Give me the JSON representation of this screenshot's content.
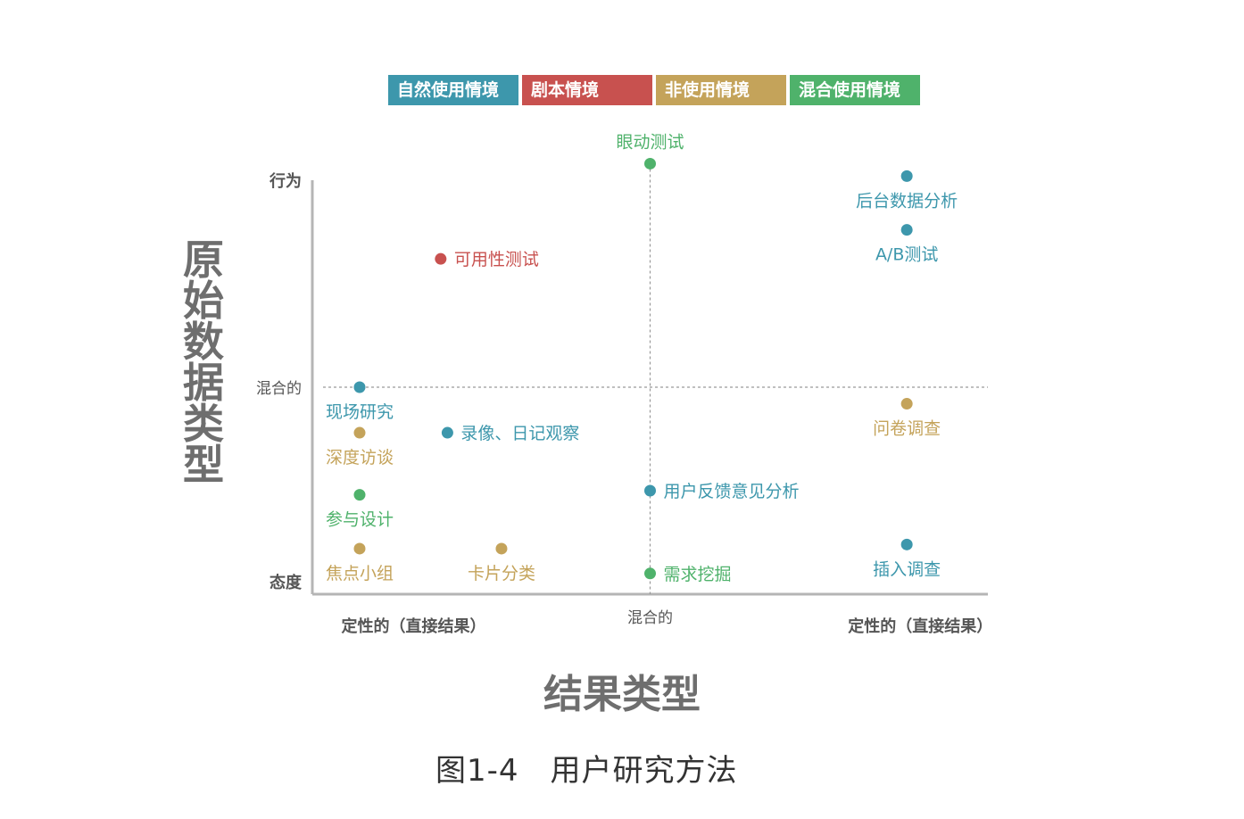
{
  "legend": [
    {
      "label": "自然使用情境",
      "color": "#3d97ac"
    },
    {
      "label": "剧本情境",
      "color": "#c8514f"
    },
    {
      "label": "非使用情境",
      "color": "#c4a35a"
    },
    {
      "label": "混合使用情境",
      "color": "#4fb26b"
    }
  ],
  "chart_data": {
    "type": "scatter",
    "title": "",
    "xlabel": "结果类型",
    "ylabel": "原始数据类型",
    "xlim": [
      0,
      100
    ],
    "ylim": [
      0,
      100
    ],
    "x_ticks": [
      {
        "value": 15,
        "label": "定性的（直接结果）"
      },
      {
        "value": 50,
        "label": "混合的"
      },
      {
        "value": 90,
        "label": "定性的（直接结果）"
      }
    ],
    "y_ticks": [
      {
        "value": 100,
        "label": "行为"
      },
      {
        "value": 50,
        "label": "混合的"
      },
      {
        "value": 3,
        "label": "态度"
      }
    ],
    "points": [
      {
        "label": "眼动测试",
        "x": 50,
        "y": 104,
        "context": 3
      },
      {
        "label": "后台数据分析",
        "x": 88,
        "y": 101,
        "context": 0
      },
      {
        "label": "A/B测试",
        "x": 88,
        "y": 88,
        "context": 0
      },
      {
        "label": "可用性测试",
        "x": 19,
        "y": 81,
        "context": 1
      },
      {
        "label": "现场研究",
        "x": 7,
        "y": 50,
        "context": 0
      },
      {
        "label": "问卷调查",
        "x": 88,
        "y": 46,
        "context": 2
      },
      {
        "label": "深度访谈",
        "x": 7,
        "y": 39,
        "context": 2
      },
      {
        "label": "录像、日记观察",
        "x": 20,
        "y": 39,
        "context": 0
      },
      {
        "label": "用户反馈意见分析",
        "x": 50,
        "y": 25,
        "context": 0
      },
      {
        "label": "参与设计",
        "x": 7,
        "y": 24,
        "context": 3
      },
      {
        "label": "焦点小组",
        "x": 7,
        "y": 11,
        "context": 2
      },
      {
        "label": "卡片分类",
        "x": 28,
        "y": 11,
        "context": 2
      },
      {
        "label": "插入调查",
        "x": 88,
        "y": 12,
        "context": 0
      },
      {
        "label": "需求挖掘",
        "x": 50,
        "y": 5,
        "context": 3
      }
    ]
  },
  "caption": "图1-4　用户研究方法"
}
